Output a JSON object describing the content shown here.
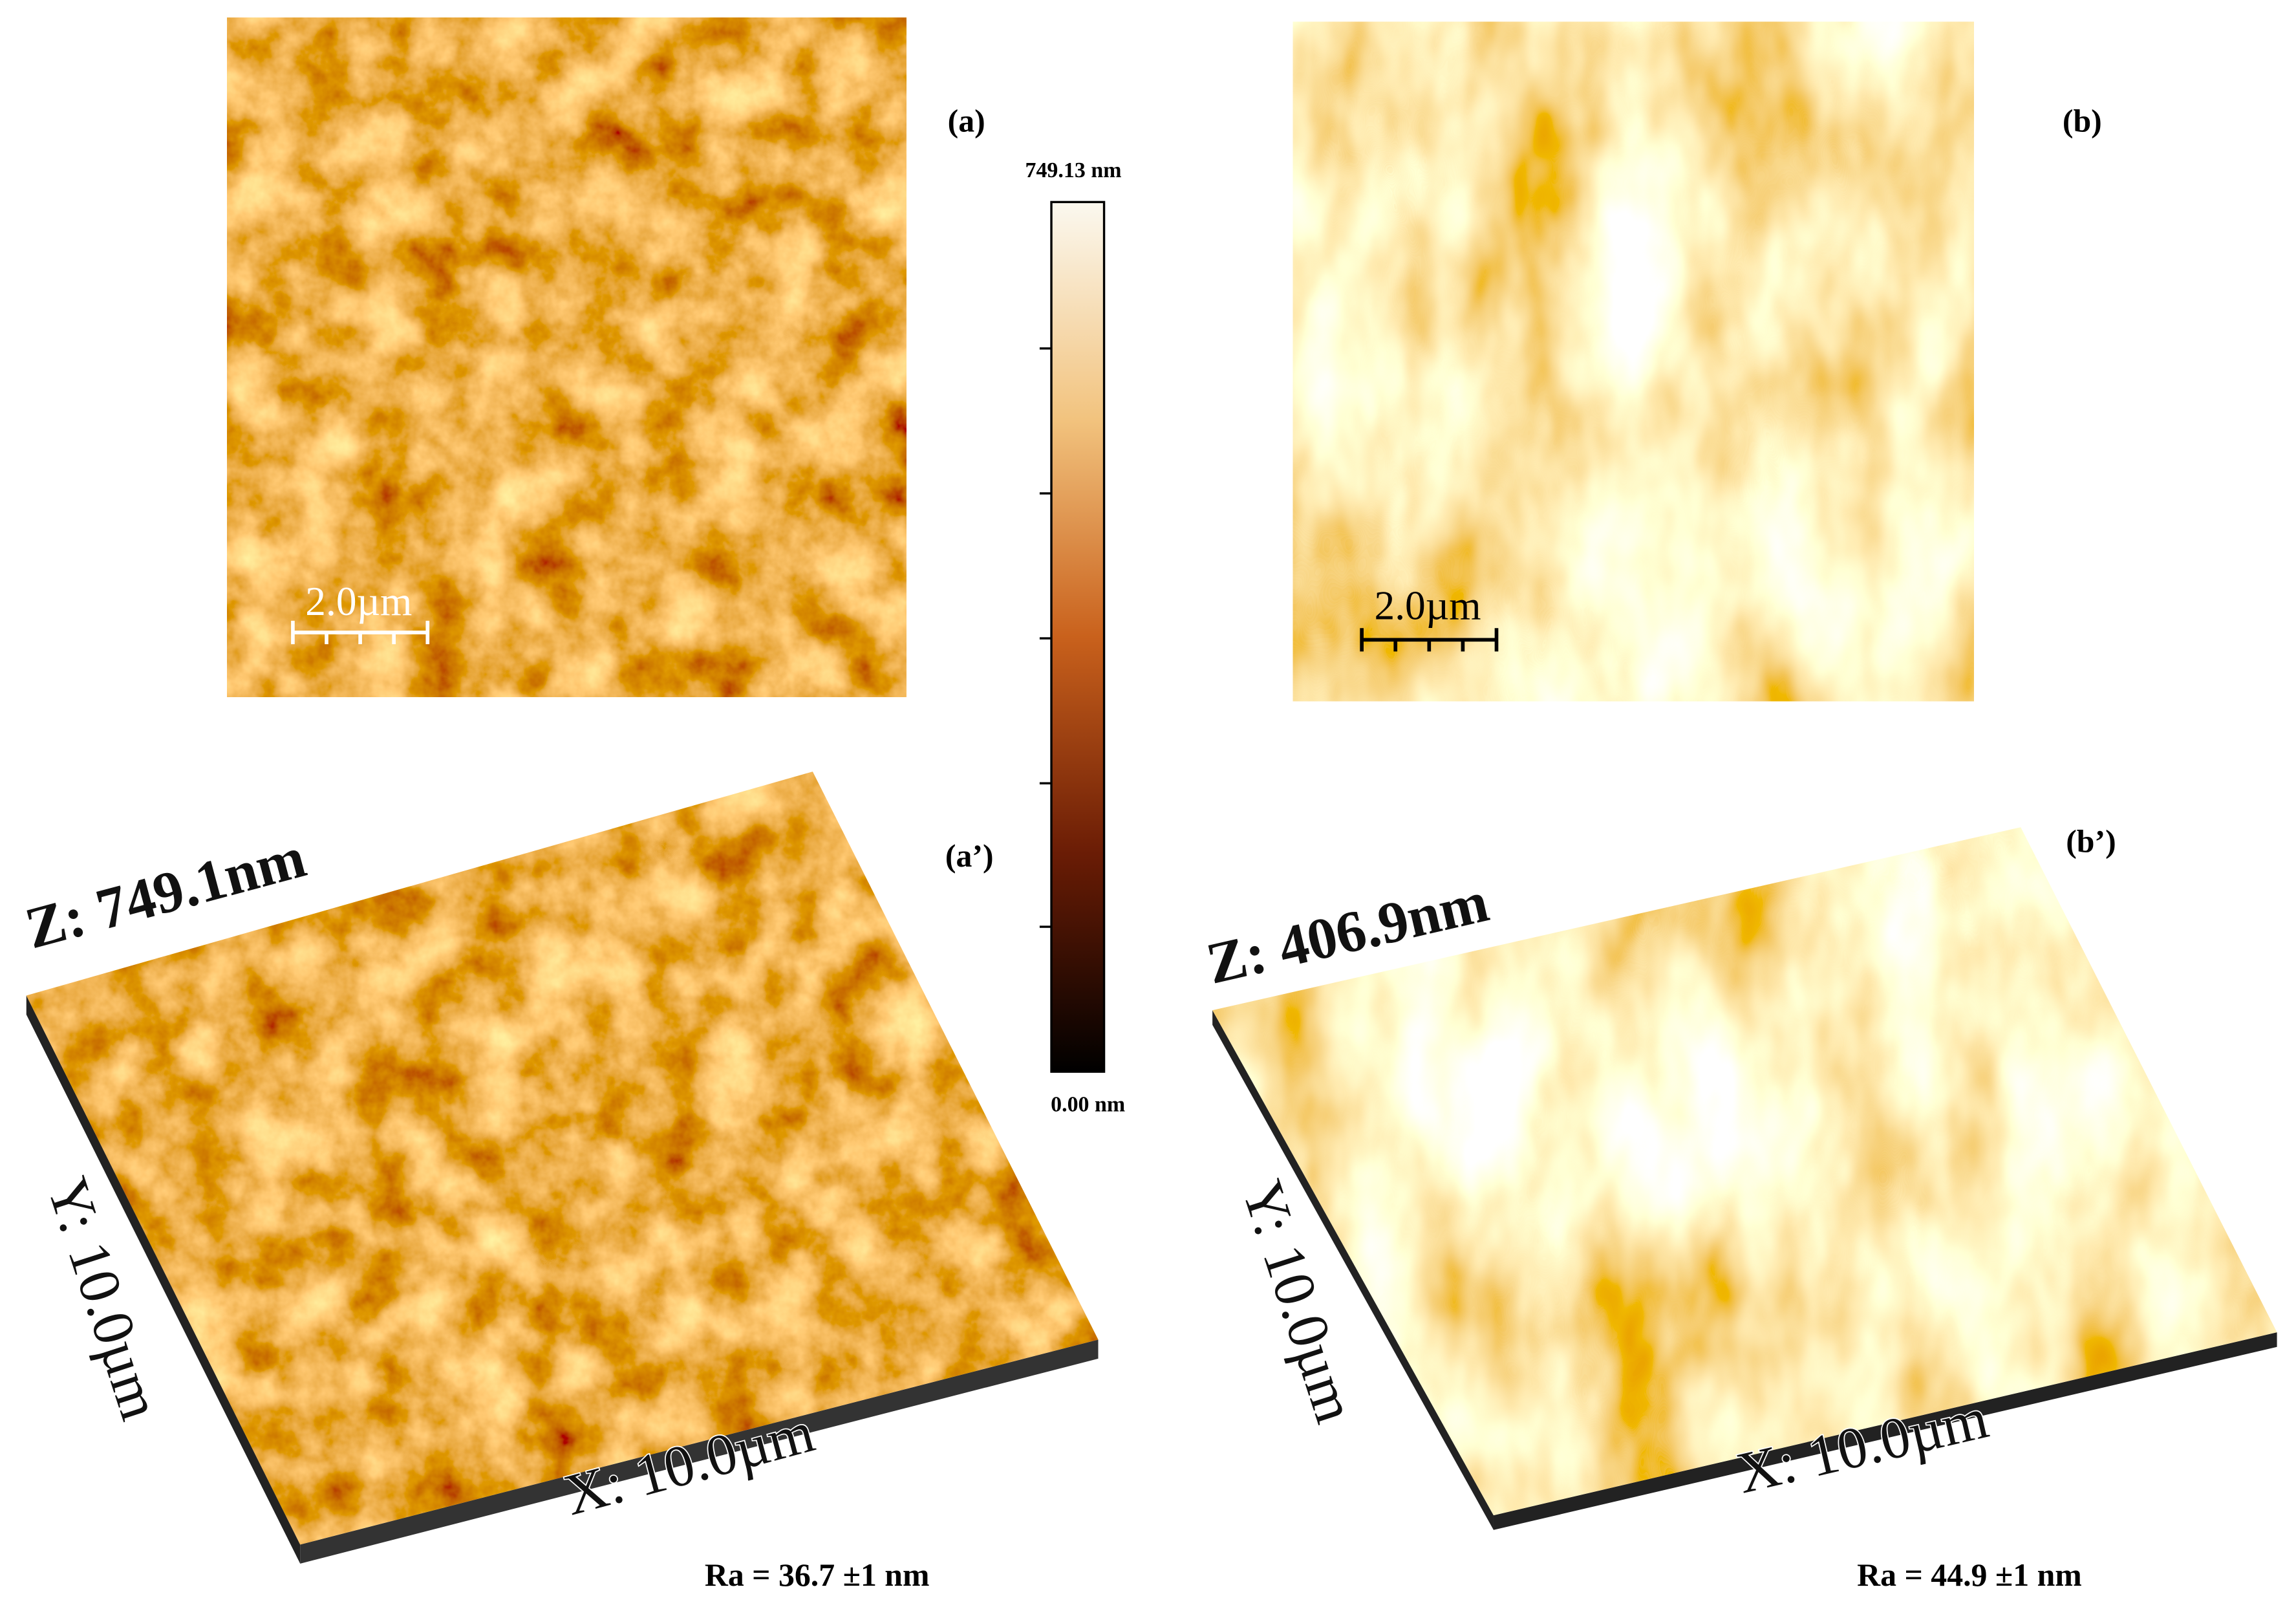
{
  "panels": [
    {
      "label": "(a)",
      "scale_bar": "2.0µm"
    },
    {
      "label": "(b)",
      "scale_bar": "2.0µm"
    },
    {
      "label": "(a’)",
      "z_axis": "Z: 749.1nm",
      "y_axis": "Y: 10.0µm",
      "x_axis": "X: 10.0µm",
      "roughness": "Ra = 36.7 ±1 nm"
    },
    {
      "label": "(b’)",
      "z_axis": "Z: 406.9nm",
      "y_axis": "Y: 10.0µm",
      "x_axis": "X: 10.0µm",
      "roughness": "Ra = 44.9 ±1 nm"
    }
  ],
  "color_scale": {
    "max": "749.13 nm",
    "min": "0.00 nm"
  }
}
